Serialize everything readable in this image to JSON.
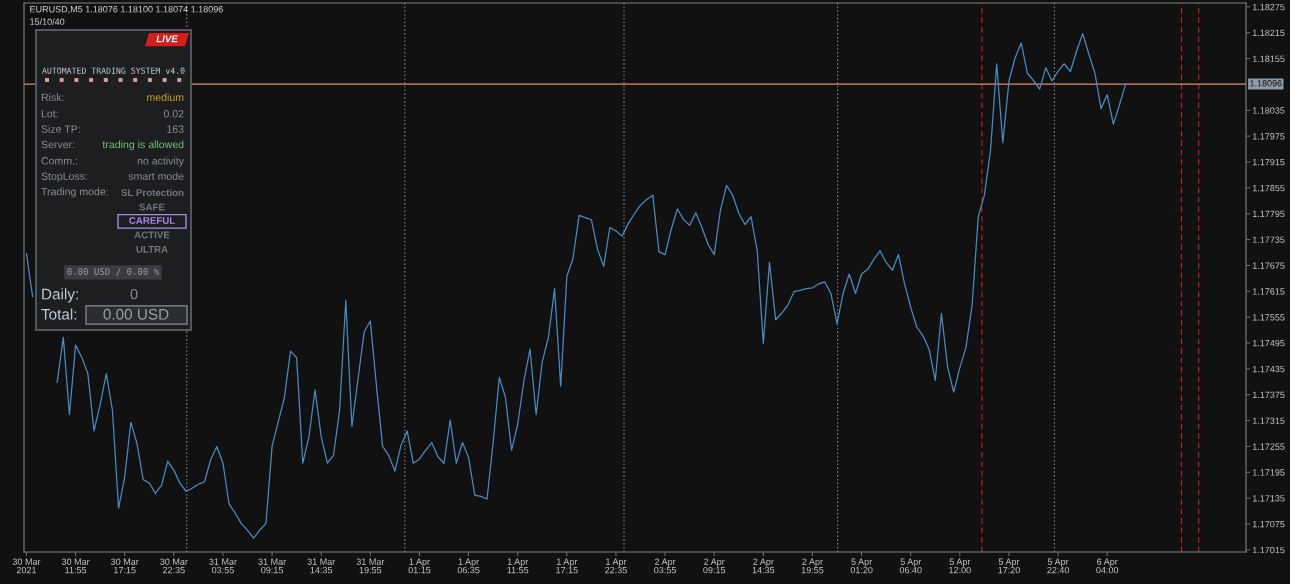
{
  "chart_data": [
    {
      "type": "line",
      "title": "EURUSD,M5 1.18076 1.18100 1.18074 1.18096",
      "subtitle": "15/10/40",
      "categories": [
        "30 Mar 2021",
        null,
        null,
        null,
        null,
        null,
        null,
        null,
        "30 Mar 11:55",
        null,
        null,
        null,
        null,
        null,
        null,
        null,
        "30 Mar 17:15",
        null,
        null,
        null,
        null,
        null,
        null,
        null,
        "30 Mar 22:35",
        null,
        null,
        null,
        null,
        null,
        null,
        null,
        "31 Mar 03:55",
        null,
        null,
        null,
        null,
        null,
        null,
        null,
        "31 Mar 09:15",
        null,
        null,
        null,
        null,
        null,
        null,
        null,
        "31 Mar 14:35",
        null,
        null,
        null,
        null,
        null,
        null,
        null,
        "31 Mar 19:55",
        null,
        null,
        null,
        null,
        null,
        null,
        null,
        "1 Apr 01:15",
        null,
        null,
        null,
        null,
        null,
        null,
        null,
        "1 Apr 06:35",
        null,
        null,
        null,
        null,
        null,
        null,
        null,
        "1 Apr 11:55",
        null,
        null,
        null,
        null,
        null,
        null,
        null,
        "1 Apr 17:15",
        null,
        null,
        null,
        null,
        null,
        null,
        null,
        "1 Apr 22:35",
        null,
        null,
        null,
        null,
        null,
        null,
        null,
        "2 Apr 03:55",
        null,
        null,
        null,
        null,
        null,
        null,
        null,
        "2 Apr 09:15",
        null,
        null,
        null,
        null,
        null,
        null,
        null,
        "2 Apr 14:35",
        null,
        null,
        null,
        null,
        null,
        null,
        null,
        "2 Apr 19:55",
        null,
        null,
        null,
        null,
        null,
        null,
        null,
        "5 Apr 01:20",
        null,
        null,
        null,
        null,
        null,
        null,
        null,
        "5 Apr 06:40",
        null,
        null,
        null,
        null,
        null,
        null,
        null,
        "5 Apr 12:00",
        null,
        null,
        null,
        null,
        null,
        null,
        null,
        "5 Apr 17:20",
        null,
        null,
        null,
        null,
        null,
        null,
        null,
        "5 Apr 22:40",
        null,
        null,
        null,
        null,
        null,
        null,
        null,
        "6 Apr 04:00",
        null,
        null,
        null,
        null,
        null,
        null,
        null,
        null,
        null,
        null,
        null,
        null,
        null,
        null,
        null,
        null,
        null,
        null,
        null,
        null,
        null,
        null
      ],
      "series": [
        {
          "color": "#4a8bc6",
          "values": [
            1.17702,
            1.17603,
            null,
            null,
            null,
            1.17404,
            1.17508,
            1.17329,
            1.1749,
            1.17462,
            1.17424,
            1.17291,
            1.17352,
            1.17424,
            1.17339,
            1.17112,
            1.17184,
            1.17311,
            1.17262,
            1.17178,
            1.1717,
            1.17146,
            1.17165,
            1.17221,
            1.172,
            1.17169,
            1.17151,
            1.17158,
            1.17167,
            1.17173,
            1.17224,
            1.17255,
            1.17216,
            1.17121,
            1.171,
            1.17076,
            1.1706,
            1.17042,
            1.17061,
            1.17076,
            1.17255,
            1.17312,
            1.17368,
            1.17476,
            1.17461,
            1.17216,
            1.17277,
            1.17386,
            1.17277,
            1.17216,
            1.17234,
            1.1734,
            1.17594,
            1.17302,
            1.17412,
            1.17521,
            1.17546,
            1.17395,
            1.17255,
            1.17234,
            1.17198,
            1.17258,
            1.17291,
            1.17216,
            1.17226,
            1.17246,
            1.17264,
            1.17231,
            1.17216,
            1.17316,
            1.17216,
            1.17264,
            1.17229,
            1.17142,
            1.17139,
            1.17133,
            1.17264,
            1.17415,
            1.17369,
            1.17246,
            1.17307,
            1.17406,
            1.17481,
            1.17329,
            1.17452,
            1.17508,
            1.17621,
            1.17395,
            1.1765,
            1.17691,
            1.17791,
            1.17786,
            1.17781,
            1.17712,
            1.17673,
            1.17763,
            1.17755,
            1.17743,
            1.17772,
            1.17795,
            1.17815,
            1.17828,
            1.17838,
            1.17707,
            1.177,
            1.17759,
            1.17806,
            1.17782,
            1.17768,
            1.17797,
            1.17763,
            1.17724,
            1.177,
            1.17802,
            1.17861,
            1.17838,
            1.17796,
            1.1777,
            1.17788,
            1.17709,
            1.17494,
            1.17682,
            1.17549,
            1.17564,
            1.17583,
            1.17614,
            1.17617,
            1.17621,
            1.17623,
            1.17632,
            1.17637,
            1.1761,
            1.1754,
            1.17611,
            1.17655,
            1.1761,
            1.17655,
            1.17666,
            1.17689,
            1.17709,
            1.17682,
            1.17664,
            1.177,
            1.17632,
            1.17578,
            1.17531,
            1.17512,
            1.1748,
            1.17408,
            1.17564,
            1.1744,
            1.17381,
            1.17438,
            1.17485,
            1.17583,
            1.17788,
            1.17838,
            1.17942,
            1.18143,
            1.1796,
            1.18103,
            1.18157,
            1.18191,
            1.18121,
            1.18104,
            1.18084,
            1.18134,
            1.18103,
            1.18126,
            1.18143,
            1.18125,
            1.18172,
            1.18213,
            1.18166,
            1.18121,
            1.18039,
            1.18071,
            1.18003,
            1.18048,
            1.18096,
            null,
            null,
            null,
            null,
            null,
            null,
            null,
            null,
            null,
            null,
            null,
            null,
            null,
            null,
            null,
            null,
            null,
            null,
            null
          ]
        }
      ],
      "ylim": [
        1.1701,
        1.18284
      ],
      "yticks": [
        1.17015,
        1.17075,
        1.17135,
        1.17195,
        1.17255,
        1.17315,
        1.17375,
        1.17435,
        1.17495,
        1.17555,
        1.17615,
        1.17675,
        1.17735,
        1.17795,
        1.17855,
        1.17915,
        1.17975,
        1.18035,
        1.18155,
        1.18215,
        1.18275
      ],
      "ref_lines": [
        {
          "axis": "y",
          "value": 1.18096,
          "label": "1.18096",
          "color": "#e38a6d",
          "line_style": "solid"
        }
      ]
    },
    {
      "type": "other",
      "annotations": [
        "LIVE",
        "AUTOMATED TRADING SYSTEM v4.0",
        "Risk:",
        "medium",
        "Lot:",
        "0.02",
        "Size TP:",
        "163",
        "Server:",
        "trading is allowed",
        "Comm.:",
        "no activity",
        "StopLoss:",
        "smart mode",
        "Trading mode:",
        "SL Protection",
        "SAFE",
        "CAREFUL",
        "ACTIVE",
        "ULTRA",
        "0.00 USD / 0.00 %",
        "Daily:",
        "0",
        "Total:",
        "0.00 USD"
      ],
      "colors": [
        "#ffffff",
        "#c9cdd2",
        "#8a8f96",
        "#c9a227",
        "#8a8f96",
        "#8a8f96",
        "#8a8f96",
        "#8a8f96",
        "#8a8f96",
        "#7cbf7a",
        "#8a8f96",
        "#8a8f96",
        "#8a8f96",
        "#8a8f96",
        "#8a8f96",
        "#74787e",
        "#74787e",
        "#a98be8",
        "#74787e",
        "#74787e",
        "#9a9da2",
        "#c4ccd6",
        "#8a8f96",
        "#c4ccd6",
        "#9aa0a8"
      ]
    }
  ]
}
